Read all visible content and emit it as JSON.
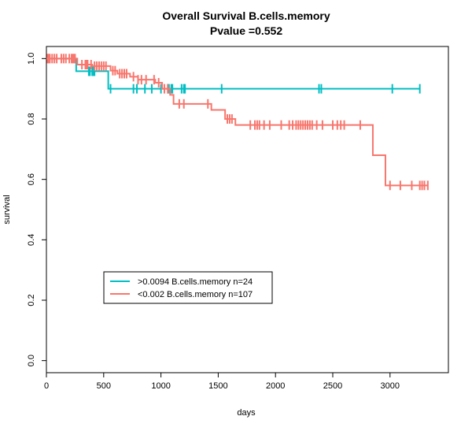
{
  "chart_data": {
    "type": "line",
    "title": "Overall Survival B.cells.memory",
    "subtitle": "Pvalue =0.552",
    "xlabel": "days",
    "ylabel": "survival",
    "xlim": [
      0,
      3500
    ],
    "ylim": [
      0,
      1
    ],
    "x_ticks": [
      0,
      500,
      1000,
      1500,
      2000,
      2500,
      3000
    ],
    "y_ticks": [
      0.0,
      0.2,
      0.4,
      0.6,
      0.8,
      1.0
    ],
    "x_tick_labels": [
      "0",
      "500",
      "1000",
      "1500",
      "2000",
      "2500",
      "3000"
    ],
    "y_tick_labels": [
      "0.0",
      "0.2",
      "0.4",
      "0.6",
      "0.8",
      "1.0"
    ],
    "grid": false,
    "legend_position": "bottom-left",
    "series": [
      {
        "name": ">0.0094 B.cells.memory n=24",
        "color": "#00BFC4",
        "steps": [
          [
            0,
            1.0
          ],
          [
            260,
            0.958
          ],
          [
            540,
            0.9
          ],
          [
            3260,
            0.9
          ]
        ],
        "censor_times": [
          370,
          380,
          400,
          410,
          420,
          560,
          760,
          790,
          860,
          920,
          1000,
          1060,
          1070,
          1090,
          1100,
          1180,
          1200,
          1210,
          1530,
          2380,
          2400,
          3020,
          3260
        ]
      },
      {
        "name": "<0.002 B.cells.memory n=107",
        "color": "#F8766D",
        "steps": [
          [
            0,
            1.0
          ],
          [
            270,
            0.98
          ],
          [
            400,
            0.975
          ],
          [
            560,
            0.96
          ],
          [
            620,
            0.95
          ],
          [
            730,
            0.94
          ],
          [
            800,
            0.93
          ],
          [
            950,
            0.92
          ],
          [
            1010,
            0.9
          ],
          [
            1080,
            0.88
          ],
          [
            1110,
            0.85
          ],
          [
            1440,
            0.83
          ],
          [
            1560,
            0.8
          ],
          [
            1650,
            0.78
          ],
          [
            2780,
            0.78
          ],
          [
            2850,
            0.68
          ],
          [
            2960,
            0.58
          ],
          [
            3330,
            0.58
          ]
        ],
        "censor_times": [
          10,
          20,
          30,
          50,
          70,
          90,
          130,
          150,
          170,
          200,
          220,
          230,
          240,
          250,
          310,
          340,
          350,
          360,
          390,
          420,
          440,
          460,
          480,
          500,
          520,
          580,
          600,
          640,
          660,
          680,
          700,
          760,
          800,
          830,
          870,
          940,
          980,
          1030,
          1060,
          1160,
          1200,
          1410,
          1580,
          1600,
          1620,
          1780,
          1820,
          1840,
          1860,
          1900,
          1950,
          2050,
          2120,
          2150,
          2180,
          2200,
          2220,
          2240,
          2260,
          2280,
          2300,
          2320,
          2360,
          2410,
          2500,
          2540,
          2570,
          2600,
          2740,
          3000,
          3090,
          3190,
          3260,
          3280,
          3300,
          3330
        ]
      }
    ]
  }
}
